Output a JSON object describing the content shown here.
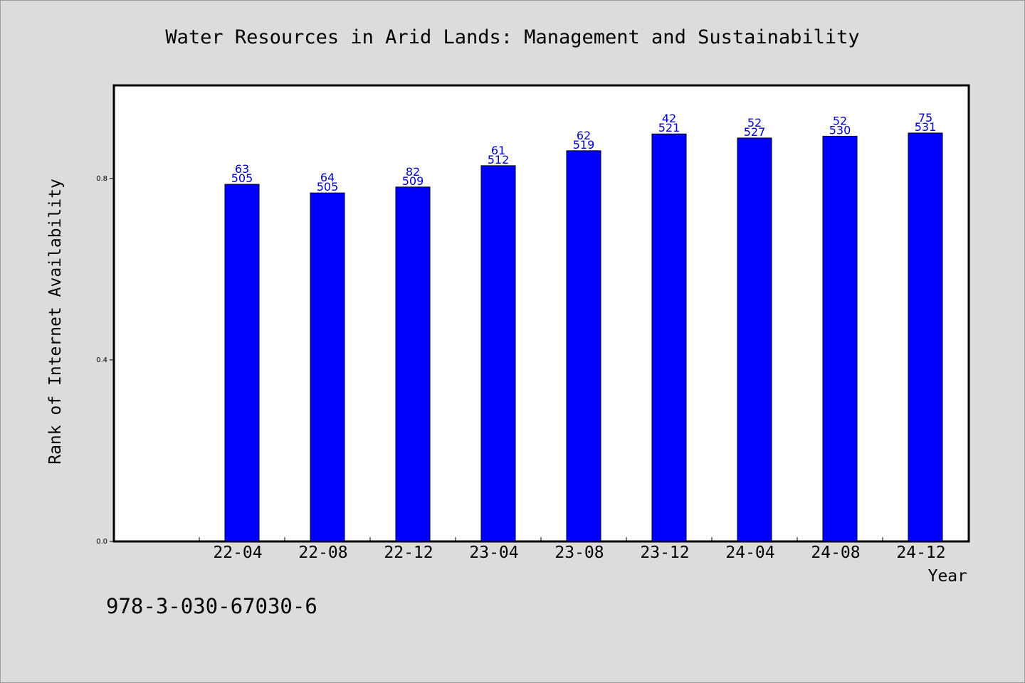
{
  "chart_data": {
    "type": "bar",
    "title": "Water Resources in Arid Lands: Management and Sustainability",
    "xlabel": "Year",
    "ylabel": "Rank of Internet Availability",
    "categories": [
      "22-04",
      "22-08",
      "22-12",
      "23-04",
      "23-08",
      "23-12",
      "24-04",
      "24-08",
      "24-12"
    ],
    "values": [
      0.787,
      0.768,
      0.781,
      0.828,
      0.861,
      0.898,
      0.889,
      0.893,
      0.9
    ],
    "bar_labels_top": [
      "63",
      "64",
      "82",
      "61",
      "62",
      "42",
      "52",
      "52",
      "75"
    ],
    "bar_labels_bottom": [
      "505",
      "505",
      "509",
      "512",
      "519",
      "521",
      "527",
      "530",
      "531"
    ],
    "yticks": [
      "0.0",
      "0.4",
      "0.8"
    ],
    "ylim": [
      0,
      1.005
    ],
    "grid": false,
    "legend": "none",
    "bar_color": "#0000ff",
    "label_color": "#0000cc"
  },
  "footer": {
    "isbn": "978-3-030-67030-6"
  }
}
